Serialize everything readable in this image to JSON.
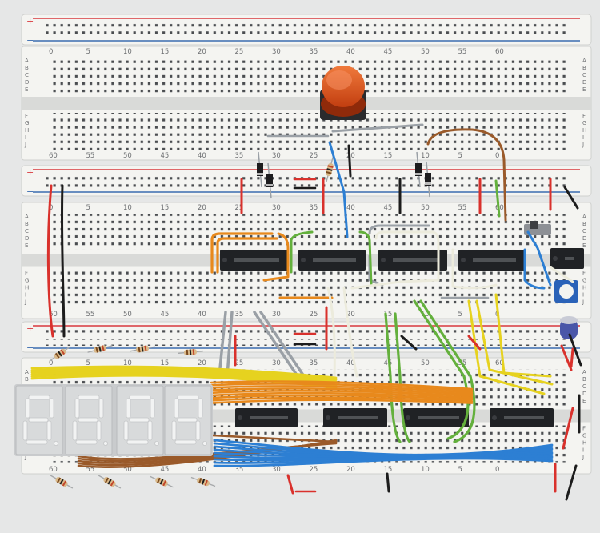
{
  "scene": {
    "subject": "breadcrumb",
    "colors": {
      "board": "#f4f4f1",
      "trench": "#d9dad8",
      "hole": "#4a4d50",
      "rail_red": "#d8383d",
      "rail_blue": "#3b6cb0",
      "ic_body": "#202225",
      "ic_text": "#8a8d90",
      "display_body": "#d8dadb",
      "display_segment": "#f2f3f3",
      "button_cap": "#e1501c",
      "wire_orange": "#e8891c",
      "wire_yellow": "#e6d21f",
      "wire_blue": "#2d7fd3",
      "wire_green": "#63b03c",
      "wire_brown": "#9a5a2a",
      "wire_gray": "#9aa0a6",
      "wire_white": "#ecebdc",
      "wire_red": "#d9312c",
      "wire_black": "#1c1c1c"
    },
    "boards": [
      {
        "name": "breadboard-top",
        "column_labels": [
          "0",
          "5",
          "10",
          "15",
          "20",
          "25",
          "30",
          "35",
          "40",
          "45",
          "50",
          "55",
          "60"
        ],
        "column_labels_flipped": [
          "60",
          "55",
          "50",
          "45",
          "40",
          "35",
          "30",
          "25",
          "20",
          "15",
          "10",
          "5",
          "0"
        ],
        "row_labels_upper": [
          "A",
          "B",
          "C",
          "D",
          "E"
        ],
        "row_labels_lower": [
          "F",
          "G",
          "H",
          "I",
          "J"
        ]
      },
      {
        "name": "breadboard-middle",
        "column_labels": [
          "0",
          "5",
          "10",
          "15",
          "20",
          "25",
          "30",
          "35",
          "40",
          "45",
          "50",
          "55",
          "60"
        ],
        "column_labels_flipped": [
          "60",
          "55",
          "50",
          "45",
          "40",
          "35",
          "30",
          "25",
          "20",
          "15",
          "10",
          "5",
          "0"
        ],
        "row_labels_upper": [
          "A",
          "B",
          "C",
          "D",
          "E"
        ],
        "row_labels_lower": [
          "F",
          "G",
          "H",
          "I",
          "J"
        ]
      },
      {
        "name": "breadboard-bottom",
        "column_labels": [
          "0",
          "5",
          "10",
          "15",
          "20",
          "25",
          "30",
          "35",
          "40",
          "45",
          "50",
          "55",
          "60"
        ],
        "column_labels_flipped": [
          "60",
          "55",
          "50",
          "45",
          "40",
          "35",
          "30",
          "25",
          "20",
          "15",
          "10",
          "5",
          "0"
        ],
        "row_labels_upper": [
          "A",
          "B",
          "C",
          "D",
          "E"
        ],
        "row_labels_lower": [
          "F",
          "G",
          "H",
          "I",
          "J"
        ]
      }
    ],
    "rail_marks": {
      "plus": "+",
      "minus": "−"
    },
    "display": {
      "digit_count": 4
    },
    "ic_chips": {
      "count": 10
    }
  }
}
